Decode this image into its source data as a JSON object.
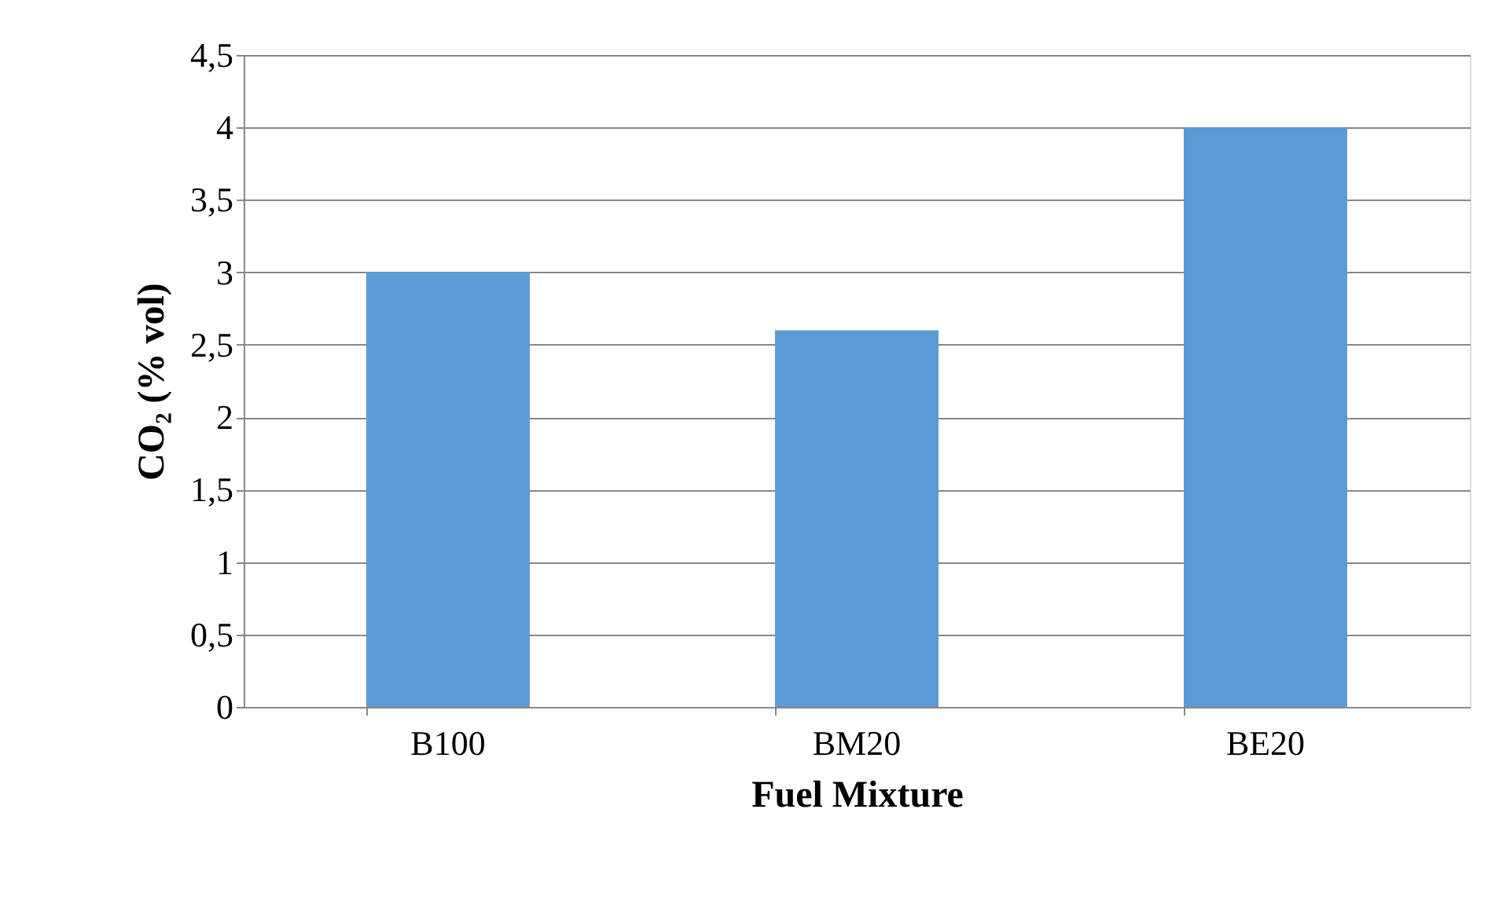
{
  "chart_data": {
    "type": "bar",
    "xlabel": "Fuel Mixture",
    "ylabel": "CO₂ (% vol)",
    "categories": [
      "B100",
      "BM20",
      "BE20"
    ],
    "values": [
      3,
      2.6,
      4
    ],
    "color": "#5b9bd5",
    "ylim": [
      0,
      4.5
    ],
    "yticks": [
      0,
      {
        "value": 0.5,
        "label": "0,5"
      },
      1,
      {
        "value": 1.5,
        "label": "1,5"
      },
      2,
      {
        "value": 2.5,
        "label": "2,5"
      },
      3,
      {
        "value": 3.5,
        "label": "3,5"
      },
      4,
      {
        "value": 4.5,
        "label": "4,5"
      }
    ],
    "grid": "y"
  }
}
